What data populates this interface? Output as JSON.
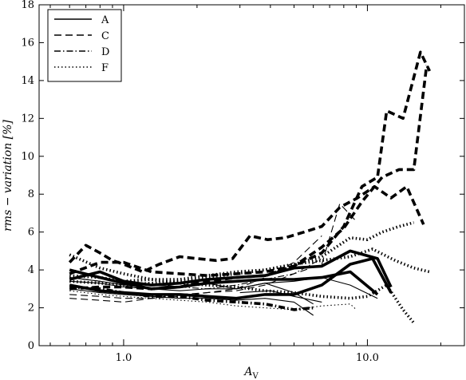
{
  "chart_data": {
    "type": "line",
    "title": "",
    "xlabel": "A_V",
    "ylabel": "rms − variation [%]",
    "x_scale": "log",
    "xlim": [
      0.45,
      25
    ],
    "ylim": [
      0,
      18
    ],
    "x_ticks": [
      {
        "value": 1.0,
        "label": "1.0"
      },
      {
        "value": 10.0,
        "label": "10.0"
      }
    ],
    "y_ticks": [
      {
        "value": 0,
        "label": "0"
      },
      {
        "value": 2,
        "label": "2"
      },
      {
        "value": 4,
        "label": "4"
      },
      {
        "value": 6,
        "label": "6"
      },
      {
        "value": 8,
        "label": "8"
      },
      {
        "value": 10,
        "label": "10"
      },
      {
        "value": 12,
        "label": "12"
      },
      {
        "value": 14,
        "label": "14"
      },
      {
        "value": 16,
        "label": "16"
      },
      {
        "value": 18,
        "label": "18"
      }
    ],
    "grid": false,
    "legend_position": "top-left",
    "legend": [
      {
        "name": "A",
        "style": "solid"
      },
      {
        "name": "C",
        "style": "dashed"
      },
      {
        "name": "D",
        "style": "dashdot"
      },
      {
        "name": "F",
        "style": "dotted"
      }
    ],
    "series": [
      {
        "name": "A",
        "style": "solid",
        "weight": "thick",
        "x": [
          0.6,
          0.8,
          1.0,
          1.3,
          1.7,
          2.2,
          2.9,
          3.8,
          5.0,
          6.5,
          8.5,
          11.0
        ],
        "y": [
          4.0,
          3.6,
          3.3,
          3.0,
          3.1,
          3.3,
          3.4,
          3.5,
          3.5,
          3.6,
          3.9,
          2.7
        ]
      },
      {
        "name": "A",
        "style": "solid",
        "weight": "thick",
        "x": [
          0.6,
          0.8,
          1.0,
          1.3,
          1.7,
          2.2,
          2.9,
          3.8,
          5.0,
          6.5,
          8.5,
          11.0,
          12.5
        ],
        "y": [
          3.5,
          3.9,
          3.4,
          3.2,
          3.3,
          3.5,
          3.6,
          3.7,
          4.1,
          4.2,
          5.0,
          4.6,
          3.1
        ]
      },
      {
        "name": "A",
        "style": "solid",
        "weight": "thick",
        "x": [
          0.6,
          0.8,
          1.0,
          1.3,
          1.7,
          2.2,
          2.9,
          3.8,
          5.0,
          6.5,
          8.5,
          10.5,
          12.5
        ],
        "y": [
          3.2,
          2.9,
          2.8,
          2.7,
          2.7,
          2.6,
          2.5,
          2.7,
          2.7,
          3.2,
          4.3,
          4.6,
          2.8
        ]
      },
      {
        "name": "A",
        "style": "solid",
        "weight": "thin",
        "x": [
          0.6,
          0.8,
          1.0,
          1.3,
          1.7,
          2.2,
          2.9,
          3.8,
          5.0,
          6.0
        ],
        "y": [
          3.0,
          2.8,
          2.7,
          2.6,
          2.5,
          2.5,
          2.4,
          2.5,
          2.3,
          1.6
        ]
      },
      {
        "name": "A",
        "style": "solid",
        "weight": "thin",
        "x": [
          0.6,
          0.8,
          1.0,
          1.3,
          1.7,
          2.2,
          2.9,
          3.8,
          5.0,
          6.5,
          8.5,
          11.0
        ],
        "y": [
          3.4,
          3.3,
          3.1,
          3.0,
          2.9,
          3.0,
          3.0,
          3.3,
          3.4,
          3.6,
          3.2,
          2.5
        ]
      },
      {
        "name": "A",
        "style": "solid",
        "weight": "thin",
        "x": [
          0.6,
          0.8,
          1.0,
          1.3,
          1.7,
          2.2,
          2.9,
          3.8,
          5.0,
          6.0
        ],
        "y": [
          3.6,
          3.4,
          3.2,
          3.2,
          3.1,
          3.3,
          3.0,
          3.3,
          2.8,
          2.2
        ]
      },
      {
        "name": "A",
        "style": "solid",
        "weight": "thin",
        "x": [
          3.0,
          4.0,
          5.0,
          6.5
        ],
        "y": [
          2.8,
          2.9,
          2.6,
          2.3
        ]
      },
      {
        "name": "C",
        "style": "dashed",
        "weight": "thick",
        "x": [
          0.6,
          0.7,
          0.8,
          0.9,
          1.0,
          1.2,
          1.4,
          1.7,
          2.0,
          2.4,
          2.8,
          3.3,
          3.9,
          4.6,
          5.5,
          6.5,
          7.7,
          9.1,
          10.7,
          12.5,
          14.5,
          17.0
        ],
        "y": [
          4.4,
          5.3,
          4.9,
          4.5,
          4.3,
          3.9,
          4.3,
          4.7,
          4.6,
          4.5,
          4.6,
          5.8,
          5.6,
          5.7,
          6.0,
          6.3,
          7.3,
          7.8,
          8.4,
          7.8,
          8.4,
          6.4
        ]
      },
      {
        "name": "C",
        "style": "dashed",
        "weight": "thick",
        "x": [
          0.6,
          0.8,
          1.0,
          1.3,
          1.7,
          2.2,
          2.9,
          3.8,
          5.0,
          6.5,
          8.0,
          9.5,
          11.0,
          12.0,
          14.0,
          16.5,
          18.0
        ],
        "y": [
          3.8,
          4.4,
          4.4,
          3.9,
          3.8,
          3.7,
          3.8,
          3.9,
          4.2,
          4.9,
          6.3,
          8.4,
          8.9,
          12.4,
          12.0,
          15.5,
          14.5
        ]
      },
      {
        "name": "C",
        "style": "dashed",
        "weight": "thick",
        "x": [
          0.6,
          0.8,
          1.0,
          1.3,
          1.7,
          2.2,
          2.9,
          3.8,
          5.0,
          6.5,
          8.0,
          9.5,
          11.5,
          13.5,
          15.5,
          17.5
        ],
        "y": [
          3.0,
          3.1,
          3.1,
          3.0,
          3.1,
          3.4,
          3.6,
          3.7,
          4.2,
          5.2,
          6.2,
          7.6,
          8.9,
          9.3,
          9.3,
          14.8
        ]
      },
      {
        "name": "C",
        "style": "dashed",
        "weight": "thin",
        "x": [
          0.6,
          0.8,
          1.0,
          1.3,
          1.7,
          2.2,
          2.9,
          3.8,
          5.0,
          6.5,
          7.7,
          9.1
        ],
        "y": [
          2.5,
          2.4,
          2.3,
          2.5,
          2.7,
          2.8,
          2.9,
          3.2,
          3.8,
          4.3,
          7.5,
          6.5
        ]
      },
      {
        "name": "C",
        "style": "dashed",
        "weight": "thin",
        "x": [
          0.6,
          0.8,
          1.0,
          1.3,
          1.7,
          2.2,
          2.9,
          3.8,
          5.0,
          6.5
        ],
        "y": [
          2.7,
          2.6,
          2.5,
          2.5,
          2.6,
          2.8,
          3.0,
          3.6,
          4.4,
          5.8
        ]
      },
      {
        "name": "D",
        "style": "dashdot",
        "weight": "thick",
        "x": [
          0.6,
          0.8,
          1.0,
          1.3,
          1.7,
          2.2,
          2.9,
          3.8,
          5.0,
          6.0
        ],
        "y": [
          3.1,
          3.0,
          2.8,
          2.6,
          2.6,
          2.4,
          2.3,
          2.2,
          1.9,
          2.0
        ]
      },
      {
        "name": "D",
        "style": "dashdot",
        "weight": "thin",
        "x": [
          0.6,
          0.8,
          1.0,
          1.3,
          1.7,
          2.2,
          2.9,
          3.8,
          5.0,
          6.5
        ],
        "y": [
          3.6,
          3.4,
          3.2,
          3.3,
          3.1,
          3.0,
          3.2,
          3.5,
          3.8,
          4.6
        ]
      },
      {
        "name": "F",
        "style": "dotted",
        "weight": "thick",
        "x": [
          0.6,
          0.8,
          1.0,
          1.3,
          1.7,
          2.2,
          2.9,
          3.8,
          5.0,
          6.5,
          8.5,
          10.5,
          13.0,
          15.5,
          18.0
        ],
        "y": [
          3.7,
          3.6,
          3.4,
          3.5,
          3.5,
          3.7,
          3.9,
          4.0,
          4.3,
          4.5,
          4.7,
          5.1,
          4.5,
          4.1,
          3.9
        ]
      },
      {
        "name": "F",
        "style": "dotted",
        "weight": "thick",
        "x": [
          0.6,
          0.8,
          1.0,
          1.3,
          1.7,
          2.2,
          2.9,
          3.8,
          5.0,
          6.5,
          8.5,
          10.0,
          11.5,
          13.5,
          15.5
        ],
        "y": [
          3.4,
          3.3,
          3.2,
          3.3,
          3.4,
          3.6,
          3.8,
          4.0,
          4.3,
          4.7,
          5.7,
          5.6,
          6.0,
          6.3,
          6.5
        ]
      },
      {
        "name": "F",
        "style": "dotted",
        "weight": "thick",
        "x": [
          0.6,
          0.8,
          1.0,
          1.3,
          1.7,
          2.2,
          2.9,
          3.8,
          5.0,
          6.5,
          8.5,
          10.0,
          12.0,
          14.0,
          15.5
        ],
        "y": [
          4.8,
          4.1,
          3.8,
          3.5,
          3.3,
          3.2,
          3.1,
          2.9,
          2.8,
          2.6,
          2.5,
          2.6,
          3.2,
          1.9,
          1.2
        ]
      },
      {
        "name": "F",
        "style": "dotted",
        "weight": "thin",
        "x": [
          0.6,
          0.8,
          1.0,
          1.3,
          1.7,
          2.2,
          2.9,
          3.8,
          5.0,
          6.5,
          8.5,
          9.0
        ],
        "y": [
          2.9,
          2.7,
          2.6,
          2.5,
          2.4,
          2.3,
          2.1,
          2.0,
          1.9,
          2.1,
          2.2,
          1.9
        ]
      }
    ]
  }
}
